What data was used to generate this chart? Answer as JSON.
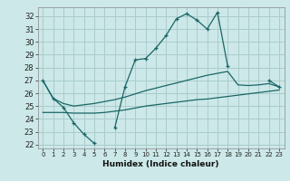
{
  "xlabel": "Humidex (Indice chaleur)",
  "background_color": "#cce8e8",
  "grid_color": "#aacccc",
  "line_color": "#1a6666",
  "xlim": [
    -0.5,
    23.5
  ],
  "ylim": [
    21.7,
    32.7
  ],
  "yticks": [
    22,
    23,
    24,
    25,
    26,
    27,
    28,
    29,
    30,
    31,
    32
  ],
  "xticks": [
    0,
    1,
    2,
    3,
    4,
    5,
    6,
    7,
    8,
    9,
    10,
    11,
    12,
    13,
    14,
    15,
    16,
    17,
    18,
    19,
    20,
    21,
    22,
    23
  ],
  "line1_y": [
    27.0,
    25.6,
    24.9,
    23.7,
    22.8,
    22.1,
    null,
    23.3,
    26.5,
    28.6,
    28.7,
    29.5,
    30.5,
    31.8,
    32.2,
    31.7,
    31.0,
    32.3,
    28.1,
    null,
    null,
    null,
    27.0,
    26.5
  ],
  "line2_y": [
    27.0,
    25.6,
    25.2,
    25.0,
    25.1,
    25.2,
    25.35,
    25.5,
    25.7,
    25.95,
    26.2,
    26.4,
    26.6,
    26.8,
    27.0,
    27.2,
    27.4,
    27.55,
    27.7,
    26.65,
    26.6,
    26.65,
    26.75,
    26.5
  ],
  "line3_y": [
    24.5,
    24.5,
    24.5,
    24.45,
    24.45,
    24.45,
    24.5,
    24.6,
    24.7,
    24.85,
    25.0,
    25.1,
    25.2,
    25.3,
    25.4,
    25.5,
    25.55,
    25.65,
    25.75,
    25.85,
    25.95,
    26.05,
    26.15,
    26.25
  ]
}
